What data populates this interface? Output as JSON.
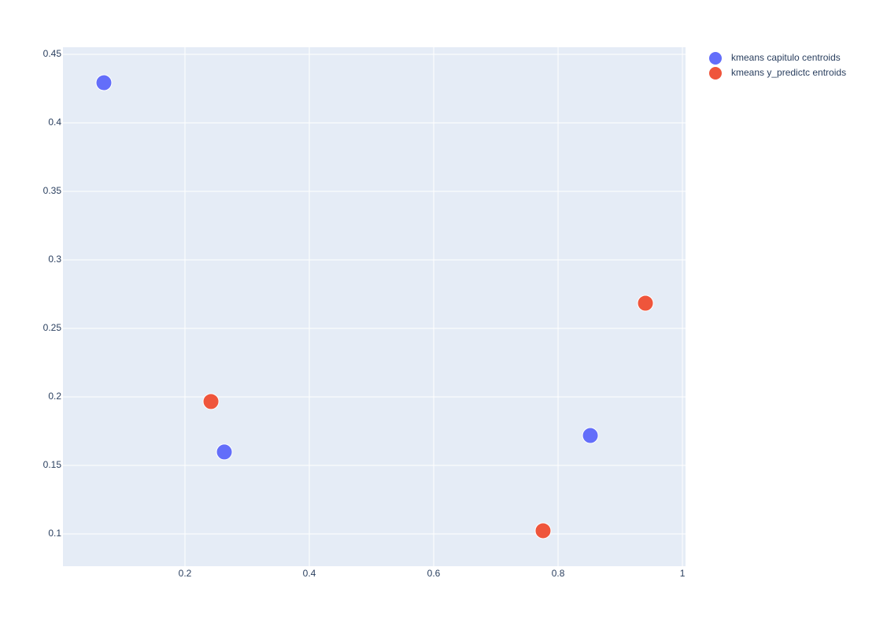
{
  "chart_data": {
    "type": "scatter",
    "series": [
      {
        "name": "kmeans capitulo centroids",
        "color": "#636efa",
        "x": [
          0.0696,
          0.2633,
          0.8519
        ],
        "values": [
          0.4293,
          0.1598,
          0.1718
        ]
      },
      {
        "name": "kmeans y_predictc entroids",
        "color": "#ef553b",
        "x": [
          0.2418,
          0.9405,
          0.7759
        ],
        "values": [
          0.1966,
          0.2684,
          0.1023
        ]
      }
    ],
    "xlim": [
      0.0038,
      1.005
    ],
    "xticks": [
      0.2,
      0.4,
      0.6,
      0.8,
      1
    ],
    "ylim": [
      0.0764,
      0.4552
    ],
    "yticks": [
      0.1,
      0.15,
      0.2,
      0.25,
      0.3,
      0.35,
      0.4,
      0.45
    ],
    "grid": true,
    "legend": "right"
  }
}
